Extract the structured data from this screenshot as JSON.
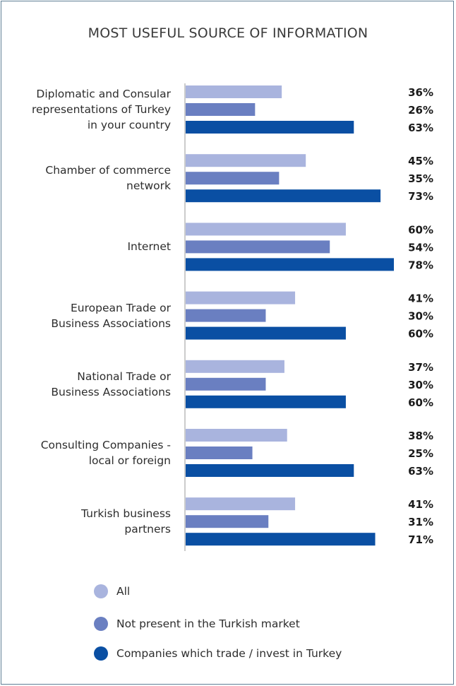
{
  "chart_data": {
    "type": "bar",
    "orientation": "horizontal",
    "title": "MOST USEFUL SOURCE OF INFORMATION",
    "categories": [
      "Diplomatic and Consular representations of Turkey in your country",
      "Chamber of commerce network",
      "Internet",
      "European Trade or Business Associations",
      "National Trade or Business Associations",
      "Consulting Companies - local or foreign",
      "Turkish business partners"
    ],
    "category_lines": [
      [
        "Diplomatic and Consular",
        "representations of Turkey",
        "in your country"
      ],
      [
        "Chamber of commerce",
        "network"
      ],
      [
        "Internet"
      ],
      [
        "European Trade or",
        "Business Associations"
      ],
      [
        "National Trade or",
        "Business Associations"
      ],
      [
        "Consulting Companies -",
        "local or foreign"
      ],
      [
        "Turkish business",
        "partners"
      ]
    ],
    "series": [
      {
        "name": "All",
        "color": "#a9b4de",
        "values": [
          36,
          45,
          60,
          41,
          37,
          38,
          41
        ]
      },
      {
        "name": "Not present in the Turkish market",
        "color": "#6a7fc1",
        "values": [
          26,
          35,
          54,
          30,
          30,
          25,
          31
        ]
      },
      {
        "name": "Companies which trade / invest in Turkey",
        "color": "#0a4fa3",
        "values": [
          63,
          73,
          78,
          60,
          60,
          63,
          71
        ]
      }
    ],
    "value_suffix": "%",
    "xlim": [
      0,
      78
    ],
    "grid": false,
    "legend_position": "bottom-left"
  }
}
